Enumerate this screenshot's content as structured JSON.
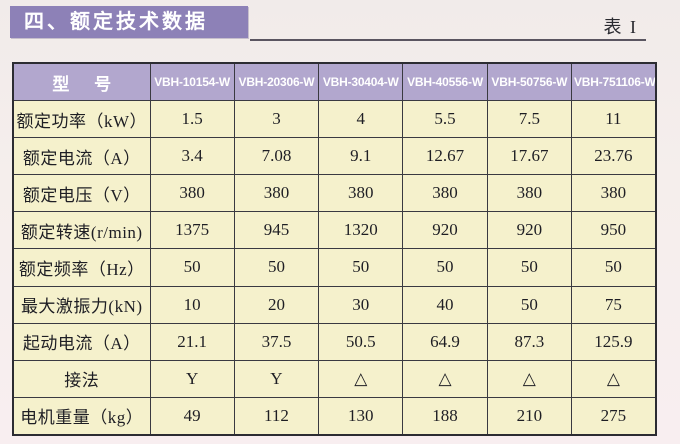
{
  "page": {
    "title_banner": "四、额定技术数据",
    "table_ref": "表 I"
  },
  "colors": {
    "banner_bg": "#8d81b7",
    "header_bg": "#b2a7ce",
    "cell_bg": "#f5f1cc",
    "page_bg": "#f5eeec",
    "grid_border": "#3a3a41"
  },
  "table": {
    "header": [
      "型 号",
      "VBH-10154-W",
      "VBH-20306-W",
      "VBH-30404-W",
      "VBH-40556-W",
      "VBH-50756-W",
      "VBH-751106-W"
    ],
    "rows": [
      {
        "label": "额定功率（kW）",
        "values": [
          "1.5",
          "3",
          "4",
          "5.5",
          "7.5",
          "11"
        ]
      },
      {
        "label": "额定电流（A）",
        "values": [
          "3.4",
          "7.08",
          "9.1",
          "12.67",
          "17.67",
          "23.76"
        ]
      },
      {
        "label": "额定电压（V）",
        "values": [
          "380",
          "380",
          "380",
          "380",
          "380",
          "380"
        ]
      },
      {
        "label": "额定转速(r/min)",
        "values": [
          "1375",
          "945",
          "1320",
          "920",
          "920",
          "950"
        ]
      },
      {
        "label": "额定频率（Hz）",
        "values": [
          "50",
          "50",
          "50",
          "50",
          "50",
          "50"
        ]
      },
      {
        "label": "最大激振力(kN)",
        "values": [
          "10",
          "20",
          "30",
          "40",
          "50",
          "75"
        ]
      },
      {
        "label": "起动电流（A）",
        "values": [
          "21.1",
          "37.5",
          "50.5",
          "64.9",
          "87.3",
          "125.9"
        ]
      },
      {
        "label": "接法",
        "values": [
          "Y",
          "Y",
          "△",
          "△",
          "△",
          "△"
        ]
      },
      {
        "label": "电机重量（kg）",
        "values": [
          "49",
          "112",
          "130",
          "188",
          "210",
          "275"
        ]
      }
    ]
  }
}
